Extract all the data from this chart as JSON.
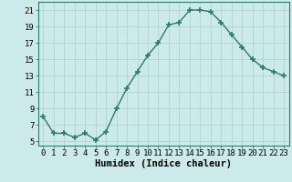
{
  "xlabel": "Humidex (Indice chaleur)",
  "x": [
    0,
    1,
    2,
    3,
    4,
    5,
    6,
    7,
    8,
    9,
    10,
    11,
    12,
    13,
    14,
    15,
    16,
    17,
    18,
    19,
    20,
    21,
    22,
    23
  ],
  "y": [
    8.0,
    6.0,
    6.0,
    5.5,
    6.0,
    5.2,
    6.2,
    9.0,
    11.5,
    13.5,
    15.5,
    17.0,
    19.2,
    19.5,
    21.0,
    21.0,
    20.8,
    19.5,
    18.0,
    16.5,
    15.0,
    14.0,
    13.5,
    13.0
  ],
  "line_color": "#2d7a6e",
  "marker": "+",
  "marker_size": 4,
  "marker_lw": 1.2,
  "bg_color": "#cdeaea",
  "grid_color": "#b0d4d4",
  "ylim": [
    4.5,
    22
  ],
  "yticks": [
    5,
    7,
    9,
    11,
    13,
    15,
    17,
    19,
    21
  ],
  "xlim": [
    -0.5,
    23.5
  ],
  "xticks": [
    0,
    1,
    2,
    3,
    4,
    5,
    6,
    7,
    8,
    9,
    10,
    11,
    12,
    13,
    14,
    15,
    16,
    17,
    18,
    19,
    20,
    21,
    22,
    23
  ],
  "tick_fontsize": 6.5,
  "xlabel_fontsize": 7.5,
  "spine_color": "#2d7a6e",
  "line_width": 1.0
}
